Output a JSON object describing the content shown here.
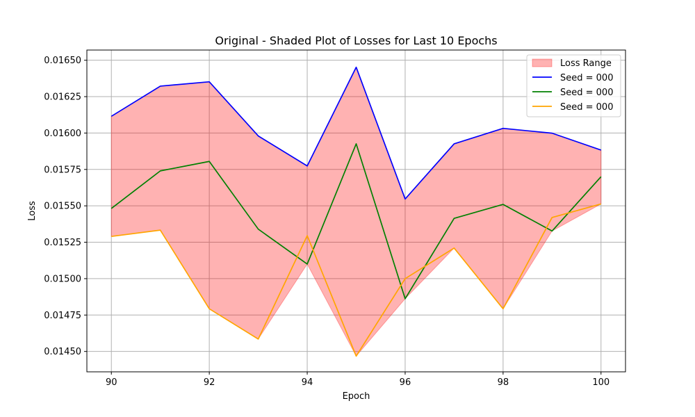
{
  "chart_data": {
    "type": "line",
    "title": "Original - Shaded Plot of Losses for Last 10 Epochs",
    "xlabel": "Epoch",
    "ylabel": "Loss",
    "x": [
      90,
      91,
      92,
      93,
      94,
      95,
      96,
      97,
      98,
      99,
      100
    ],
    "xlim": [
      89.5,
      100.5
    ],
    "ylim": [
      0.01436,
      0.01657
    ],
    "xticks": [
      90,
      92,
      94,
      96,
      98,
      100
    ],
    "xtick_labels": [
      "90",
      "92",
      "94",
      "96",
      "98",
      "100"
    ],
    "yticks": [
      0.0145,
      0.01475,
      0.015,
      0.01525,
      0.0155,
      0.01575,
      0.016,
      0.01625,
      0.0165
    ],
    "ytick_labels": [
      "0.01450",
      "0.01475",
      "0.01500",
      "0.01525",
      "0.01550",
      "0.01575",
      "0.01600",
      "0.01625",
      "0.01650"
    ],
    "grid": true,
    "legend_position": "top-right",
    "band": {
      "name": "Loss Range",
      "color": "#ff0000",
      "opacity": 0.3
    },
    "series": [
      {
        "name": "Seed = 000",
        "color": "#0000ff",
        "values": [
          0.016115,
          0.016322,
          0.016352,
          0.01598,
          0.015774,
          0.016452,
          0.015547,
          0.015926,
          0.016032,
          0.015999,
          0.015883
        ]
      },
      {
        "name": "Seed = 000",
        "color": "#008000",
        "values": [
          0.015482,
          0.01574,
          0.015805,
          0.01534,
          0.0151,
          0.015926,
          0.014862,
          0.015414,
          0.01551,
          0.015327,
          0.0157
        ]
      },
      {
        "name": "Seed = 000",
        "color": "#ffa500",
        "values": [
          0.01529,
          0.015333,
          0.014793,
          0.014585,
          0.015295,
          0.014468,
          0.015,
          0.01521,
          0.014793,
          0.01542,
          0.015513
        ]
      }
    ]
  }
}
